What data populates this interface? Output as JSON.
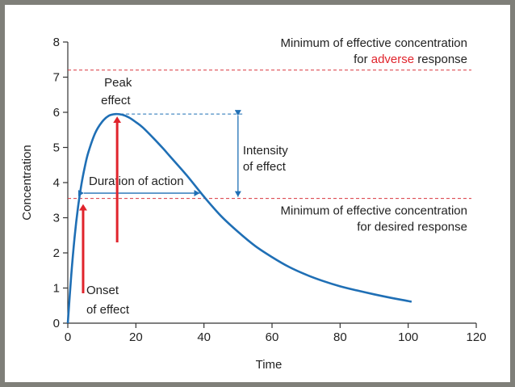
{
  "chart_data": {
    "type": "line",
    "xlabel": "Time",
    "ylabel": "Concentration",
    "xlim": [
      0,
      120
    ],
    "ylim": [
      0,
      8
    ],
    "x_ticks": [
      "0",
      "20",
      "40",
      "60",
      "80",
      "100",
      "120"
    ],
    "y_ticks": [
      "0",
      "1",
      "2",
      "3",
      "4",
      "5",
      "6",
      "7",
      "8"
    ],
    "grid": false,
    "series": [
      {
        "x": [
          0,
          1,
          2,
          3,
          4,
          5,
          6,
          8,
          10,
          12,
          14,
          16,
          18,
          20,
          22,
          25,
          28,
          30,
          35,
          40,
          45,
          50,
          55,
          60,
          65,
          70,
          75,
          80,
          85,
          90,
          95,
          100,
          101
        ],
        "values": [
          0,
          1.35,
          2.45,
          3.3,
          3.95,
          4.45,
          4.85,
          5.4,
          5.72,
          5.9,
          5.95,
          5.93,
          5.85,
          5.72,
          5.57,
          5.28,
          4.97,
          4.75,
          4.2,
          3.6,
          3.05,
          2.6,
          2.2,
          1.88,
          1.6,
          1.38,
          1.2,
          1.05,
          0.93,
          0.82,
          0.72,
          0.63,
          0.61
        ],
        "color": "#1f6fb5"
      }
    ],
    "reference_lines": [
      {
        "y": 7.2,
        "color": "#d9363e",
        "style": "dashed"
      },
      {
        "y": 3.55,
        "color": "#d9363e",
        "style": "dashed"
      }
    ],
    "annotations": {
      "adverse_line1": "Minimum of effective concentration",
      "adverse_prefix": "for ",
      "adverse_word": "adverse",
      "adverse_suffix": " response",
      "desired_line1": "Minimum of effective concentration",
      "desired_line2": "for desired response",
      "peak_line1": "Peak",
      "peak_line2": "effect",
      "intensity_line1": "Intensity",
      "intensity_line2": "of effect",
      "duration": "Duration of action",
      "onset_line1": "Onset",
      "onset_line2": "of effect"
    },
    "markers": {
      "peak": {
        "x": 14.5,
        "y": 5.95
      },
      "onset": {
        "x": 4.5,
        "y": 3.55
      },
      "duration_range": [
        4.5,
        39
      ],
      "intensity_x": 50,
      "intensity_range": [
        3.55,
        5.95
      ]
    },
    "colors": {
      "curve": "#1f6fb5",
      "arrow": "#e0242c",
      "threshold": "#d9363e",
      "adverse": "#e0242c"
    }
  }
}
